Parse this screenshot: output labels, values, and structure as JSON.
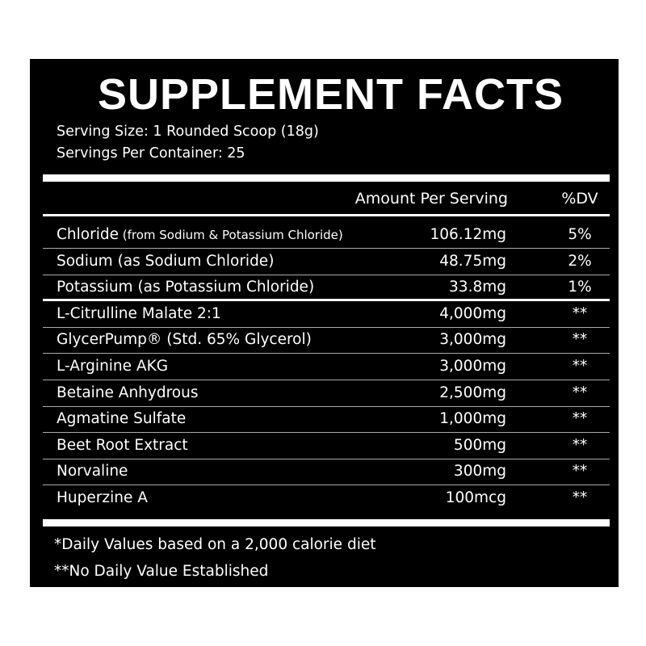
{
  "title": "SUPPLEMENT FACTS",
  "serving_size": "Serving Size: 1 Rounded Scoop (18g)",
  "servings_per_container": "Servings Per Container: 25",
  "header": {
    "amount": "Amount Per Serving",
    "dv": "%DV"
  },
  "rows": [
    {
      "name": "Chloride",
      "note": " (from Sodium & Potassium Chloride)",
      "amount": "106.12mg",
      "dv": "5%"
    },
    {
      "name": "Sodium (as Sodium Chloride)",
      "note": "",
      "amount": "48.75mg",
      "dv": "2%"
    },
    {
      "name": "Potassium (as Potassium Chloride)",
      "note": "",
      "amount": "33.8mg",
      "dv": "1%"
    },
    {
      "name": "L-Citrulline Malate 2:1",
      "note": "",
      "amount": "4,000mg",
      "dv": "**"
    },
    {
      "name": "GlycerPump® (Std. 65% Glycerol)",
      "note": "",
      "amount": "3,000mg",
      "dv": "**"
    },
    {
      "name": "L-Arginine AKG",
      "note": "",
      "amount": "3,000mg",
      "dv": "**"
    },
    {
      "name": "Betaine Anhydrous",
      "note": "",
      "amount": "2,500mg",
      "dv": "**"
    },
    {
      "name": "Agmatine Sulfate",
      "note": "",
      "amount": "1,000mg",
      "dv": "**"
    },
    {
      "name": "Beet Root Extract",
      "note": "",
      "amount": "500mg",
      "dv": "**"
    },
    {
      "name": "Norvaline",
      "note": "",
      "amount": "300mg",
      "dv": "**"
    },
    {
      "name": "Huperzine A",
      "note": "",
      "amount": "100mcg",
      "dv": "**"
    }
  ],
  "footnotes": [
    "*Daily Values based on a 2,000 calorie diet",
    "**No Daily Value Established"
  ]
}
